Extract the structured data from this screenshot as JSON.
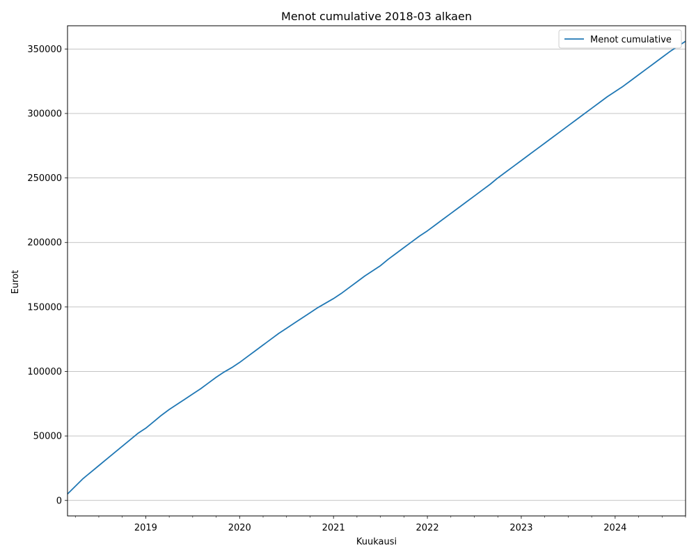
{
  "chart_data": {
    "type": "line",
    "title": "Menot cumulative 2018-03 alkaen",
    "xlabel": "Kuukausi",
    "ylabel": "Eurot",
    "x_start": "2018-03",
    "x_end": "2024-10",
    "xlim": [
      "2018-03",
      "2024-10"
    ],
    "ylim": [
      -12000,
      368000
    ],
    "yticks": [
      0,
      50000,
      100000,
      150000,
      200000,
      250000,
      300000,
      350000
    ],
    "ytick_labels": [
      "0",
      "50000",
      "100000",
      "150000",
      "200000",
      "250000",
      "300000",
      "350000"
    ],
    "xticks": [
      "2019-01",
      "2020-01",
      "2021-01",
      "2022-01",
      "2023-01",
      "2024-01"
    ],
    "xtick_labels": [
      "2019",
      "2020",
      "2021",
      "2022",
      "2023",
      "2024"
    ],
    "grid": "horizontal",
    "legend": "top-right",
    "series": [
      {
        "name": "Menot cumulative",
        "color": "#1f77b4",
        "x": [
          "2018-03",
          "2018-04",
          "2018-05",
          "2018-06",
          "2018-07",
          "2018-08",
          "2018-09",
          "2018-10",
          "2018-11",
          "2018-12",
          "2019-01",
          "2019-02",
          "2019-03",
          "2019-04",
          "2019-05",
          "2019-06",
          "2019-07",
          "2019-08",
          "2019-09",
          "2019-10",
          "2019-11",
          "2019-12",
          "2020-01",
          "2020-02",
          "2020-03",
          "2020-04",
          "2020-05",
          "2020-06",
          "2020-07",
          "2020-08",
          "2020-09",
          "2020-10",
          "2020-11",
          "2020-12",
          "2021-01",
          "2021-02",
          "2021-03",
          "2021-04",
          "2021-05",
          "2021-06",
          "2021-07",
          "2021-08",
          "2021-09",
          "2021-10",
          "2021-11",
          "2021-12",
          "2022-01",
          "2022-02",
          "2022-03",
          "2022-04",
          "2022-05",
          "2022-06",
          "2022-07",
          "2022-08",
          "2022-09",
          "2022-10",
          "2022-11",
          "2022-12",
          "2023-01",
          "2023-02",
          "2023-03",
          "2023-04",
          "2023-05",
          "2023-06",
          "2023-07",
          "2023-08",
          "2023-09",
          "2023-10",
          "2023-11",
          "2023-12",
          "2024-01",
          "2024-02",
          "2024-03",
          "2024-04",
          "2024-05",
          "2024-06",
          "2024-07",
          "2024-08",
          "2024-09",
          "2024-10"
        ],
        "values": [
          5000,
          11000,
          17000,
          22000,
          27000,
          32000,
          37000,
          42000,
          47000,
          52000,
          56000,
          61000,
          66000,
          70500,
          74500,
          78500,
          82500,
          86500,
          91000,
          95500,
          99500,
          103000,
          107000,
          111500,
          116000,
          120500,
          125000,
          129500,
          133500,
          137500,
          141500,
          145500,
          149500,
          153000,
          156500,
          160500,
          165000,
          169500,
          174000,
          178000,
          182000,
          187000,
          191500,
          196000,
          200500,
          205000,
          209000,
          213500,
          218000,
          222500,
          227000,
          231500,
          236000,
          240500,
          245000,
          250000,
          254500,
          259000,
          263500,
          268000,
          272500,
          277000,
          281500,
          286000,
          290500,
          295000,
          299500,
          304000,
          308500,
          313000,
          317000,
          321000,
          325500,
          330000,
          334500,
          339000,
          343500,
          348000,
          352000,
          356000
        ]
      }
    ]
  }
}
